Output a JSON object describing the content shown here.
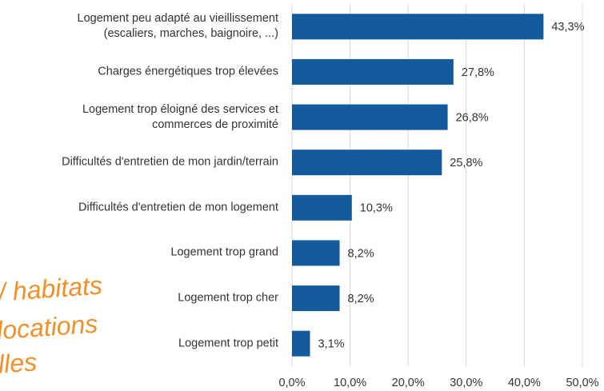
{
  "chart_data": {
    "type": "bar",
    "orientation": "horizontal",
    "categories": [
      "Logement peu adapté au vieillissement\n(escaliers, marches, baignoire, ...)",
      "Charges énergétiques trop élevées",
      "Logement trop éloigné des services et\ncommerces de proximité",
      "Difficultés d'entretien de mon jardin/terrain",
      "Difficultés d'entretien de mon logement",
      "Logement trop grand",
      "Logement trop cher",
      "Logement trop petit"
    ],
    "values": [
      43.3,
      27.8,
      26.8,
      25.8,
      10.3,
      8.2,
      8.2,
      3.1
    ],
    "value_labels": [
      "43,3%",
      "27,8%",
      "26,8%",
      "25,8%",
      "10,3%",
      "8,2%",
      "8,2%",
      "3,1%"
    ],
    "color": "#135a9c",
    "xlim": [
      0,
      50
    ],
    "xticks": [
      {
        "value": 0,
        "label": "0,0%"
      },
      {
        "value": 10,
        "label": "10,0%"
      },
      {
        "value": 20,
        "label": "20,0%"
      },
      {
        "value": 30,
        "label": "30,0%"
      },
      {
        "value": 40,
        "label": "40,0%"
      },
      {
        "value": 50,
        "label": "50,0%"
      }
    ],
    "grid": true,
    "annotations": [
      "/ habitats",
      "locations",
      "lles"
    ]
  }
}
